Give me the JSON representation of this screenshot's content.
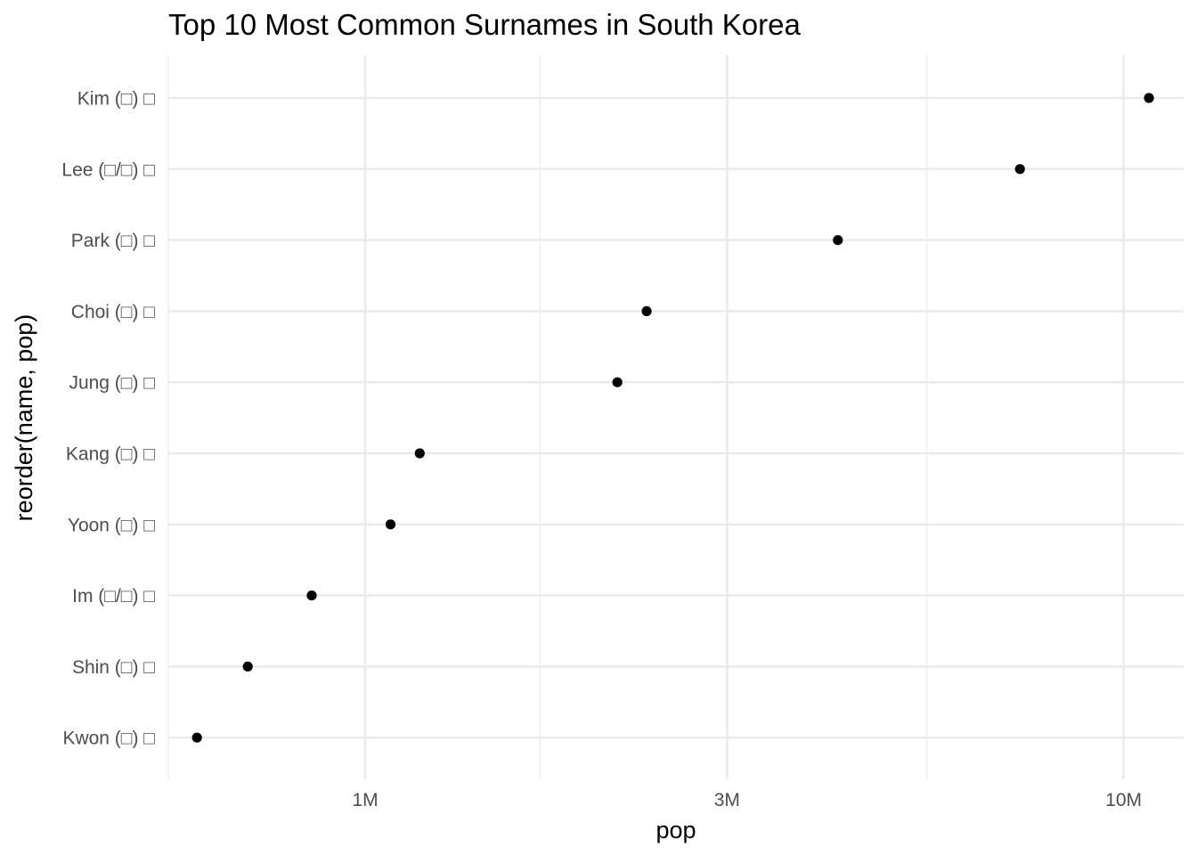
{
  "chart_data": {
    "type": "scatter",
    "title": "Top 10 Most Common Surnames in South Korea",
    "xlabel": "pop",
    "ylabel": "reorder(name, pop)",
    "x_scale": "log10",
    "xlim": [
      550000,
      12000000
    ],
    "x_ticks": [
      {
        "value": 1000000,
        "label": "1M"
      },
      {
        "value": 3000000,
        "label": "3M"
      },
      {
        "value": 10000000,
        "label": "10M"
      }
    ],
    "x_minor_ticks": [
      550000,
      1700000,
      5500000
    ],
    "grid": true,
    "legend": "none",
    "categories": [
      "Kim (□) □",
      "Lee (□/□) □",
      "Park (□) □",
      "Choi (□) □",
      "Jung (□) □",
      "Kang (□) □",
      "Yoon (□) □",
      "Im (□/□) □",
      "Shin (□) □",
      "Kwon (□) □"
    ],
    "values": [
      10800000,
      7300000,
      4200000,
      2350000,
      2150000,
      1180000,
      1080000,
      850000,
      700000,
      600000
    ],
    "point_color": "#000000",
    "grid_color": "#ebebeb"
  }
}
